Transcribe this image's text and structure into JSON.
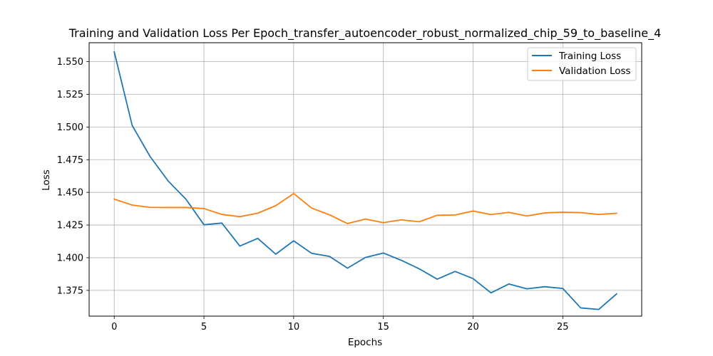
{
  "chart_data": {
    "type": "line",
    "title": "Training and Validation Loss Per Epoch_transfer_autoencoder_robust_normalized_chip_59_to_baseline_4",
    "xlabel": "Epochs",
    "ylabel": "Loss",
    "xlim": [
      -1.4,
      29.4
    ],
    "ylim": [
      1.3553,
      1.5645
    ],
    "xticks": [
      0,
      5,
      10,
      15,
      20,
      25
    ],
    "xtick_labels": [
      "0",
      "5",
      "10",
      "15",
      "20",
      "25"
    ],
    "yticks": [
      1.375,
      1.4,
      1.425,
      1.45,
      1.475,
      1.5,
      1.525,
      1.55
    ],
    "ytick_labels": [
      "1.375",
      "1.400",
      "1.425",
      "1.450",
      "1.475",
      "1.500",
      "1.525",
      "1.550"
    ],
    "grid": true,
    "legend_position": "top-right",
    "x": [
      0,
      1,
      2,
      3,
      4,
      5,
      6,
      7,
      8,
      9,
      10,
      11,
      12,
      13,
      14,
      15,
      16,
      17,
      18,
      19,
      20,
      21,
      22,
      23,
      24,
      25,
      26,
      27,
      28
    ],
    "series": [
      {
        "name": "Training Loss",
        "color": "#1f77b4",
        "values": [
          1.5575,
          1.5012,
          1.4774,
          1.4588,
          1.4447,
          1.4252,
          1.4265,
          1.4089,
          1.4148,
          1.4027,
          1.4129,
          1.4034,
          1.401,
          1.392,
          1.4002,
          1.4036,
          1.398,
          1.3915,
          1.3836,
          1.3895,
          1.384,
          1.3731,
          1.3799,
          1.3762,
          1.3778,
          1.3765,
          1.3616,
          1.3604,
          1.3723
        ]
      },
      {
        "name": "Validation Loss",
        "color": "#ff7f0e",
        "values": [
          1.4448,
          1.4403,
          1.4385,
          1.4384,
          1.4384,
          1.4376,
          1.4331,
          1.4314,
          1.4341,
          1.4398,
          1.4491,
          1.438,
          1.4328,
          1.4261,
          1.4296,
          1.4268,
          1.429,
          1.4275,
          1.4325,
          1.4327,
          1.4357,
          1.433,
          1.4347,
          1.4319,
          1.4343,
          1.4348,
          1.4345,
          1.4331,
          1.434
        ]
      }
    ]
  }
}
